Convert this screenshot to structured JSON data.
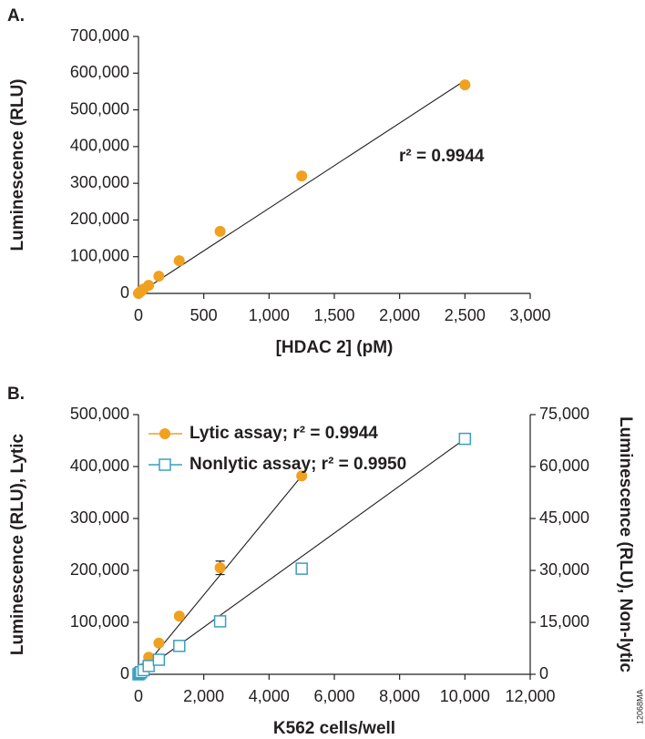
{
  "chart_data": [
    {
      "type": "scatter",
      "label": "A.",
      "xlabel": "[HDAC 2] (pM)",
      "ylabel": "Luminescence (RLU)",
      "annotation": "r² = 0.9944",
      "x": [
        0,
        9.8,
        19.5,
        39,
        78,
        156,
        312,
        625,
        1250,
        2500
      ],
      "series": [
        {
          "color": "#f0a11f",
          "marker": "circle",
          "values": [
            0,
            3000,
            6000,
            12000,
            22000,
            47000,
            89000,
            169000,
            320000,
            568000
          ],
          "fit": {
            "x": [
              0,
              2500
            ],
            "values": [
              0,
              580000
            ]
          }
        }
      ],
      "xlim": [
        0,
        3000
      ],
      "xticks": [
        0,
        500,
        {
          "value": 1000,
          "label": "1,000"
        },
        {
          "value": 1500,
          "label": "1,500"
        },
        {
          "value": 2000,
          "label": "2,000"
        },
        {
          "value": 2500,
          "label": "2,500"
        },
        {
          "value": 3000,
          "label": "3,000"
        }
      ],
      "ylim": [
        0,
        700000
      ],
      "yticks": [
        0,
        {
          "value": 100000,
          "label": "100,000"
        },
        {
          "value": 200000,
          "label": "200,000"
        },
        {
          "value": 300000,
          "label": "300,000"
        },
        {
          "value": 400000,
          "label": "400,000"
        },
        {
          "value": 500000,
          "label": "500,000"
        },
        {
          "value": 600000,
          "label": "600,000"
        },
        {
          "value": 700000,
          "label": "700,000"
        }
      ]
    },
    {
      "type": "scatter",
      "label": "B.",
      "xlabel": "K562 cells/well",
      "ylabel": "Luminescence (RLU), Lytic",
      "y2label": "Luminescence (RLU), Non-lytic",
      "credit": "12068MA",
      "series": [
        {
          "name": "Lytic assay; r² = 0.9944",
          "color": "#f0a11f",
          "marker": "circle",
          "x": [
            0,
            19.5,
            39,
            78,
            156,
            312,
            625,
            1250,
            2500,
            5000
          ],
          "values": [
            0,
            1500,
            3000,
            5000,
            12000,
            33000,
            60000,
            112000,
            205000,
            382000
          ],
          "errors": [
            null,
            null,
            null,
            null,
            null,
            null,
            null,
            null,
            13000,
            null
          ],
          "fit": {
            "x": [
              0,
              5000
            ],
            "values": [
              0,
              382000
            ]
          }
        },
        {
          "name": "Nonlytic assay; r² = 0.9950",
          "color": "#3a9fc0",
          "marker": "square",
          "axis": "y2",
          "x": [
            0,
            39,
            78,
            156,
            312,
            625,
            1250,
            2500,
            5000,
            10000
          ],
          "values": [
            0,
            300,
            600,
            1200,
            2400,
            4200,
            8200,
            15300,
            30500,
            68000
          ],
          "errors": [
            null,
            null,
            null,
            null,
            null,
            null,
            null,
            null,
            null,
            1500
          ],
          "fit": {
            "x": [
              0,
              10000
            ],
            "values": [
              0,
              68000
            ]
          }
        }
      ],
      "xlim": [
        0,
        12000
      ],
      "xticks": [
        0,
        {
          "value": 2000,
          "label": "2,000"
        },
        {
          "value": 4000,
          "label": "4,000"
        },
        {
          "value": 6000,
          "label": "6,000"
        },
        {
          "value": 8000,
          "label": "8,000"
        },
        {
          "value": 10000,
          "label": "10,000"
        },
        {
          "value": 12000,
          "label": "12,000"
        }
      ],
      "ylim": [
        0,
        500000
      ],
      "yticks": [
        0,
        {
          "value": 100000,
          "label": "100,000"
        },
        {
          "value": 200000,
          "label": "200,000"
        },
        {
          "value": 300000,
          "label": "300,000"
        },
        {
          "value": 400000,
          "label": "400,000"
        },
        {
          "value": 500000,
          "label": "500,000"
        }
      ],
      "y2lim": [
        0,
        75000
      ],
      "y2ticks": [
        0,
        {
          "value": 15000,
          "label": "15,000"
        },
        {
          "value": 30000,
          "label": "30,000"
        },
        {
          "value": 45000,
          "label": "45,000"
        },
        {
          "value": 60000,
          "label": "60,000"
        },
        {
          "value": 75000,
          "label": "75,000"
        }
      ]
    }
  ]
}
